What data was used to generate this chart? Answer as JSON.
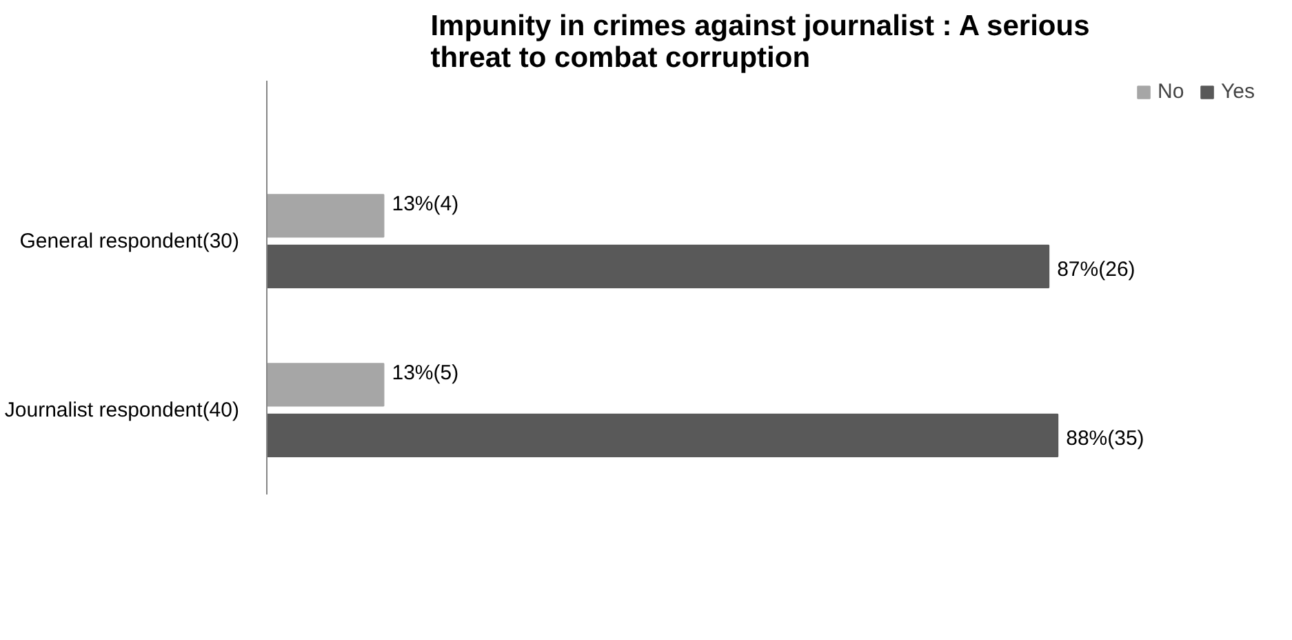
{
  "chart_data": {
    "type": "bar",
    "orientation": "horizontal",
    "title": "Impunity in crimes against journalist : A serious threat to combat corruption",
    "categories": [
      "General respondent(30)",
      "Journalist respondent(40)"
    ],
    "series": [
      {
        "name": "No",
        "color": "#a6a6a6",
        "values": [
          13,
          13
        ],
        "value_labels": [
          "13%(4)",
          "13%(5)"
        ]
      },
      {
        "name": "Yes",
        "color": "#595959",
        "values": [
          87,
          88
        ],
        "value_labels": [
          "87%(26)",
          "88%(35)"
        ]
      }
    ],
    "legend": "top right",
    "grid": false
  }
}
